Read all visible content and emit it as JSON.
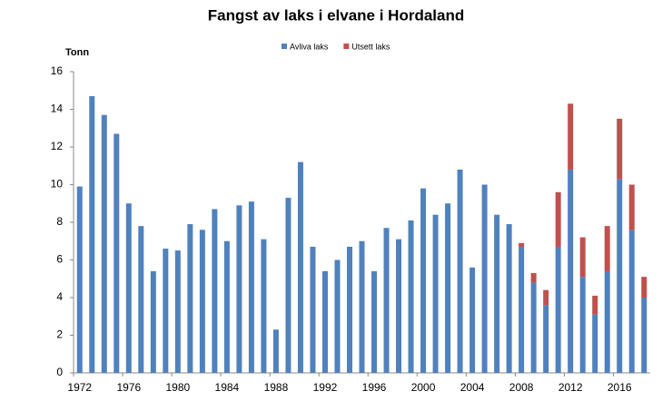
{
  "chart_data": {
    "type": "stacked-bar",
    "title": "Fangst av laks i elvane i Hordaland",
    "y_label": "Tonn",
    "categories": [
      "1972",
      null,
      null,
      null,
      "1976",
      null,
      null,
      null,
      "1980",
      null,
      null,
      null,
      "1984",
      null,
      null,
      null,
      "1988",
      null,
      null,
      null,
      "1992",
      null,
      null,
      null,
      "1996",
      null,
      null,
      null,
      "2000",
      null,
      null,
      null,
      "2004",
      null,
      null,
      null,
      "2008",
      null,
      null,
      null,
      "2012",
      null,
      null,
      null,
      "2016",
      null,
      null
    ],
    "series": [
      {
        "name": "Avliva laks",
        "color": "#4f81bd",
        "values": [
          9.9,
          14.7,
          13.7,
          12.7,
          9.0,
          7.8,
          5.4,
          6.6,
          6.5,
          7.9,
          7.6,
          8.7,
          7.0,
          8.9,
          9.1,
          7.1,
          2.3,
          9.3,
          11.2,
          6.7,
          5.4,
          6.0,
          6.7,
          7.0,
          5.4,
          7.7,
          7.1,
          8.1,
          9.8,
          8.4,
          9.0,
          10.8,
          5.6,
          10.0,
          8.4,
          7.9,
          6.7,
          4.8,
          3.6,
          6.7,
          10.8,
          5.1,
          3.1,
          5.4,
          10.3,
          7.6,
          4.0
        ]
      },
      {
        "name": "Utsett laks",
        "color": "#c0504d",
        "values": [
          0,
          0,
          0,
          0,
          0,
          0,
          0,
          0,
          0,
          0,
          0,
          0,
          0,
          0,
          0,
          0,
          0,
          0,
          0,
          0,
          0,
          0,
          0,
          0,
          0,
          0,
          0,
          0,
          0,
          0,
          0,
          0,
          0,
          0,
          0,
          0,
          0.2,
          0.5,
          0.8,
          2.9,
          3.5,
          2.1,
          1.0,
          2.4,
          3.2,
          2.4,
          1.1
        ]
      }
    ],
    "ylim": [
      0,
      16
    ],
    "yticks": [
      0,
      2,
      4,
      6,
      8,
      10,
      12,
      14,
      16
    ],
    "grid": false,
    "legend": "top"
  }
}
